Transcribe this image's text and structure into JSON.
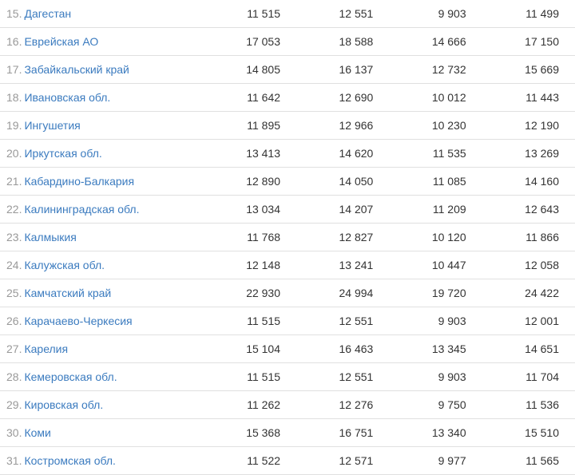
{
  "table": {
    "link_color": "#3b7bbf",
    "number_color": "#333333",
    "index_color": "#999999",
    "border_color": "#e0e0e0",
    "background_color": "#ffffff",
    "font_size": 14,
    "rows": [
      {
        "idx": "15.",
        "name": "Дагестан",
        "v1": "11 515",
        "v2": "12 551",
        "v3": "9 903",
        "v4": "11 499"
      },
      {
        "idx": "16.",
        "name": "Еврейская АО",
        "v1": "17 053",
        "v2": "18 588",
        "v3": "14 666",
        "v4": "17 150"
      },
      {
        "idx": "17.",
        "name": "Забайкальский край",
        "v1": "14 805",
        "v2": "16 137",
        "v3": "12 732",
        "v4": "15 669"
      },
      {
        "idx": "18.",
        "name": "Ивановская обл.",
        "v1": "11 642",
        "v2": "12 690",
        "v3": "10 012",
        "v4": "11 443"
      },
      {
        "idx": "19.",
        "name": "Ингушетия",
        "v1": "11 895",
        "v2": "12 966",
        "v3": "10 230",
        "v4": "12 190"
      },
      {
        "idx": "20.",
        "name": "Иркутская обл.",
        "v1": "13 413",
        "v2": "14 620",
        "v3": "11 535",
        "v4": "13 269"
      },
      {
        "idx": "21.",
        "name": "Кабардино-Балкария",
        "v1": "12 890",
        "v2": "14 050",
        "v3": "11 085",
        "v4": "14 160"
      },
      {
        "idx": "22.",
        "name": "Калининградская обл.",
        "v1": "13 034",
        "v2": "14 207",
        "v3": "11 209",
        "v4": "12 643"
      },
      {
        "idx": "23.",
        "name": "Калмыкия",
        "v1": "11 768",
        "v2": "12 827",
        "v3": "10 120",
        "v4": "11 866"
      },
      {
        "idx": "24.",
        "name": "Калужская обл.",
        "v1": "12 148",
        "v2": "13 241",
        "v3": "10 447",
        "v4": "12 058"
      },
      {
        "idx": "25.",
        "name": "Камчатский край",
        "v1": "22 930",
        "v2": "24 994",
        "v3": "19 720",
        "v4": "24 422"
      },
      {
        "idx": "26.",
        "name": "Карачаево-Черкесия",
        "v1": "11 515",
        "v2": "12 551",
        "v3": "9 903",
        "v4": "12 001"
      },
      {
        "idx": "27.",
        "name": "Карелия",
        "v1": "15 104",
        "v2": "16 463",
        "v3": "13 345",
        "v4": "14 651"
      },
      {
        "idx": "28.",
        "name": "Кемеровская обл.",
        "v1": "11 515",
        "v2": "12 551",
        "v3": "9 903",
        "v4": "11 704"
      },
      {
        "idx": "29.",
        "name": "Кировская обл.",
        "v1": "11 262",
        "v2": "12 276",
        "v3": "9 750",
        "v4": "11 536"
      },
      {
        "idx": "30.",
        "name": "Коми",
        "v1": "15 368",
        "v2": "16 751",
        "v3": "13 340",
        "v4": "15 510"
      },
      {
        "idx": "31.",
        "name": "Костромская обл.",
        "v1": "11 522",
        "v2": "12 571",
        "v3": "9 977",
        "v4": "11 565"
      }
    ]
  }
}
